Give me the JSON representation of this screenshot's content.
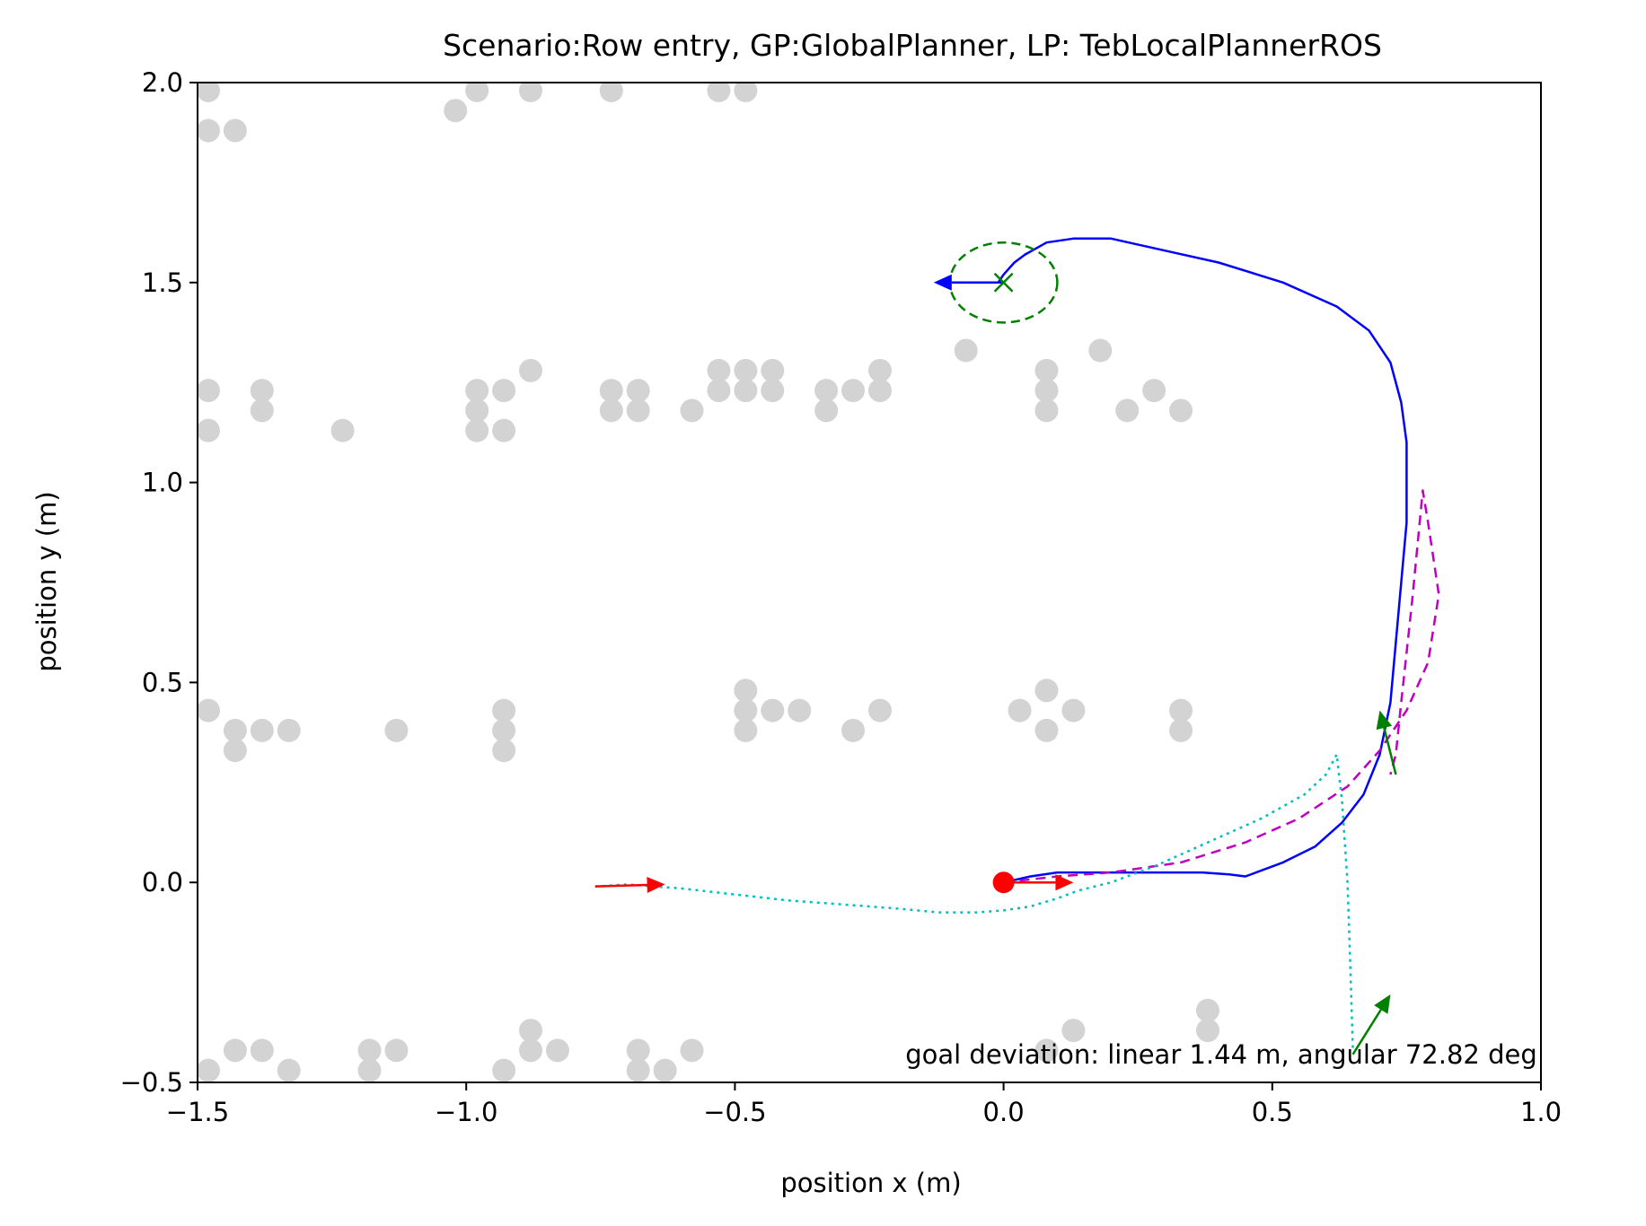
{
  "chart_data": {
    "type": "scatter",
    "title": "Scenario:Row entry, GP:GlobalPlanner, LP: TebLocalPlannerROS",
    "xlabel": "position x (m)",
    "ylabel": "position y (m)",
    "xlim": [
      -1.5,
      1.0
    ],
    "ylim": [
      -0.5,
      2.0
    ],
    "xticks": [
      -1.5,
      -1.0,
      -0.5,
      0.0,
      0.5,
      1.0
    ],
    "yticks": [
      -0.5,
      0.0,
      0.5,
      1.0,
      1.5,
      2.0
    ],
    "xtick_labels": [
      "−1.5",
      "−1.0",
      "−0.5",
      "0.0",
      "0.5",
      "1.0"
    ],
    "ytick_labels": [
      "−0.5",
      "0.0",
      "0.5",
      "1.0",
      "1.5",
      "2.0"
    ],
    "grid": false,
    "annotation": "goal deviation: linear 1.44 m, angular 72.82 deg",
    "colors": {
      "obstacles": "#d3d3d3",
      "trajectory": "#0000ff",
      "global_plan": "#bf00bf",
      "odometry": "#00bfbf",
      "start": "#ff0000",
      "goal": "#008000",
      "end_pose": "#008000"
    },
    "obstacles": [
      [
        -1.48,
        1.98
      ],
      [
        -1.48,
        1.88
      ],
      [
        -1.43,
        1.88
      ],
      [
        -1.02,
        1.93
      ],
      [
        -0.98,
        1.98
      ],
      [
        -0.88,
        1.98
      ],
      [
        -0.73,
        1.98
      ],
      [
        -0.53,
        1.98
      ],
      [
        -0.48,
        1.98
      ],
      [
        -1.48,
        1.23
      ],
      [
        -1.48,
        1.13
      ],
      [
        -1.38,
        1.23
      ],
      [
        -1.38,
        1.18
      ],
      [
        -1.23,
        1.13
      ],
      [
        -0.98,
        1.23
      ],
      [
        -0.98,
        1.18
      ],
      [
        -0.98,
        1.13
      ],
      [
        -0.93,
        1.23
      ],
      [
        -0.93,
        1.13
      ],
      [
        -0.88,
        1.28
      ],
      [
        -0.73,
        1.23
      ],
      [
        -0.73,
        1.18
      ],
      [
        -0.68,
        1.23
      ],
      [
        -0.68,
        1.18
      ],
      [
        -0.58,
        1.18
      ],
      [
        -0.53,
        1.28
      ],
      [
        -0.53,
        1.23
      ],
      [
        -0.48,
        1.28
      ],
      [
        -0.48,
        1.23
      ],
      [
        -0.43,
        1.28
      ],
      [
        -0.43,
        1.23
      ],
      [
        -0.33,
        1.23
      ],
      [
        -0.33,
        1.18
      ],
      [
        -0.28,
        1.23
      ],
      [
        -0.23,
        1.28
      ],
      [
        -0.23,
        1.23
      ],
      [
        -0.07,
        1.33
      ],
      [
        0.08,
        1.28
      ],
      [
        0.08,
        1.23
      ],
      [
        0.08,
        1.18
      ],
      [
        0.18,
        1.33
      ],
      [
        0.23,
        1.18
      ],
      [
        0.28,
        1.23
      ],
      [
        0.33,
        1.18
      ],
      [
        -1.48,
        0.43
      ],
      [
        -1.43,
        0.38
      ],
      [
        -1.43,
        0.33
      ],
      [
        -1.38,
        0.38
      ],
      [
        -1.33,
        0.38
      ],
      [
        -1.13,
        0.38
      ],
      [
        -0.93,
        0.43
      ],
      [
        -0.93,
        0.38
      ],
      [
        -0.93,
        0.33
      ],
      [
        -0.48,
        0.48
      ],
      [
        -0.48,
        0.43
      ],
      [
        -0.48,
        0.38
      ],
      [
        -0.43,
        0.43
      ],
      [
        -0.38,
        0.43
      ],
      [
        -0.28,
        0.38
      ],
      [
        -0.23,
        0.43
      ],
      [
        0.03,
        0.43
      ],
      [
        0.08,
        0.48
      ],
      [
        0.08,
        0.38
      ],
      [
        0.13,
        0.43
      ],
      [
        0.33,
        0.43
      ],
      [
        0.33,
        0.38
      ],
      [
        -1.48,
        -0.47
      ],
      [
        -1.43,
        -0.42
      ],
      [
        -1.38,
        -0.42
      ],
      [
        -1.33,
        -0.47
      ],
      [
        -1.18,
        -0.42
      ],
      [
        -1.18,
        -0.47
      ],
      [
        -1.13,
        -0.42
      ],
      [
        -0.93,
        -0.47
      ],
      [
        -0.88,
        -0.37
      ],
      [
        -0.88,
        -0.42
      ],
      [
        -0.83,
        -0.42
      ],
      [
        -0.68,
        -0.42
      ],
      [
        -0.68,
        -0.47
      ],
      [
        -0.63,
        -0.47
      ],
      [
        -0.58,
        -0.42
      ],
      [
        0.08,
        -0.42
      ],
      [
        0.13,
        -0.37
      ],
      [
        0.38,
        -0.32
      ],
      [
        0.38,
        -0.37
      ]
    ],
    "series": [
      {
        "style": "solid",
        "points": [
          [
            0.0,
            0.0
          ],
          [
            0.05,
            0.015
          ],
          [
            0.1,
            0.025
          ],
          [
            0.2,
            0.025
          ],
          [
            0.3,
            0.025
          ],
          [
            0.37,
            0.025
          ],
          [
            0.42,
            0.02
          ],
          [
            0.45,
            0.015
          ],
          [
            0.47,
            0.025
          ],
          [
            0.52,
            0.05
          ],
          [
            0.58,
            0.09
          ],
          [
            0.63,
            0.15
          ],
          [
            0.67,
            0.22
          ],
          [
            0.7,
            0.32
          ],
          [
            0.72,
            0.45
          ],
          [
            0.73,
            0.6
          ],
          [
            0.74,
            0.75
          ],
          [
            0.75,
            0.9
          ],
          [
            0.75,
            1.0
          ],
          [
            0.75,
            1.1
          ],
          [
            0.74,
            1.2
          ],
          [
            0.72,
            1.3
          ],
          [
            0.68,
            1.38
          ],
          [
            0.62,
            1.44
          ],
          [
            0.52,
            1.5
          ],
          [
            0.4,
            1.55
          ],
          [
            0.3,
            1.58
          ],
          [
            0.2,
            1.61
          ],
          [
            0.13,
            1.61
          ],
          [
            0.08,
            1.6
          ],
          [
            0.04,
            1.57
          ],
          [
            0.02,
            1.55
          ],
          [
            0.0,
            1.52
          ],
          [
            -0.01,
            1.5
          ]
        ]
      },
      {
        "style": "dashed",
        "points": [
          [
            0.0,
            0.0
          ],
          [
            0.1,
            0.015
          ],
          [
            0.2,
            0.025
          ],
          [
            0.33,
            0.05
          ],
          [
            0.45,
            0.1
          ],
          [
            0.55,
            0.16
          ],
          [
            0.64,
            0.24
          ],
          [
            0.7,
            0.33
          ],
          [
            0.75,
            0.43
          ],
          [
            0.79,
            0.55
          ],
          [
            0.81,
            0.72
          ],
          [
            0.79,
            0.9
          ],
          [
            0.78,
            0.98
          ],
          [
            0.76,
            0.7
          ],
          [
            0.74,
            0.45
          ],
          [
            0.73,
            0.32
          ],
          [
            0.72,
            0.27
          ]
        ]
      },
      {
        "style": "dotted",
        "points": [
          [
            -0.76,
            -0.01
          ],
          [
            -0.7,
            -0.005
          ],
          [
            -0.6,
            -0.015
          ],
          [
            -0.5,
            -0.03
          ],
          [
            -0.4,
            -0.045
          ],
          [
            -0.3,
            -0.055
          ],
          [
            -0.2,
            -0.065
          ],
          [
            -0.12,
            -0.075
          ],
          [
            -0.05,
            -0.075
          ],
          [
            0.0,
            -0.07
          ],
          [
            0.05,
            -0.06
          ],
          [
            0.1,
            -0.04
          ],
          [
            0.14,
            -0.02
          ],
          [
            0.2,
            0.0
          ],
          [
            0.28,
            0.04
          ],
          [
            0.38,
            0.1
          ],
          [
            0.48,
            0.16
          ],
          [
            0.56,
            0.22
          ],
          [
            0.6,
            0.27
          ],
          [
            0.62,
            0.32
          ],
          [
            0.63,
            0.2
          ],
          [
            0.64,
            0.0
          ],
          [
            0.645,
            -0.2
          ],
          [
            0.65,
            -0.42
          ]
        ]
      }
    ],
    "start": [
      0.0,
      0.0
    ],
    "goal": [
      0.0,
      1.5
    ],
    "goal_tolerance_ellipse": {
      "cx": 0.0,
      "cy": 1.5,
      "rx": 0.1,
      "ry": 0.1
    },
    "arrows": [
      {
        "color_key": "start",
        "from": [
          0.0,
          0.0
        ],
        "to": [
          0.13,
          0.0
        ]
      },
      {
        "color_key": "start",
        "from": [
          -0.76,
          -0.01
        ],
        "to": [
          -0.63,
          -0.005
        ]
      },
      {
        "color_key": "trajectory",
        "from": [
          0.0,
          1.5
        ],
        "to": [
          -0.13,
          1.5
        ]
      },
      {
        "color_key": "end_pose",
        "from": [
          0.73,
          0.27
        ],
        "to": [
          0.7,
          0.43
        ]
      },
      {
        "color_key": "end_pose",
        "from": [
          0.65,
          -0.43
        ],
        "to": [
          0.72,
          -0.28
        ]
      }
    ]
  }
}
